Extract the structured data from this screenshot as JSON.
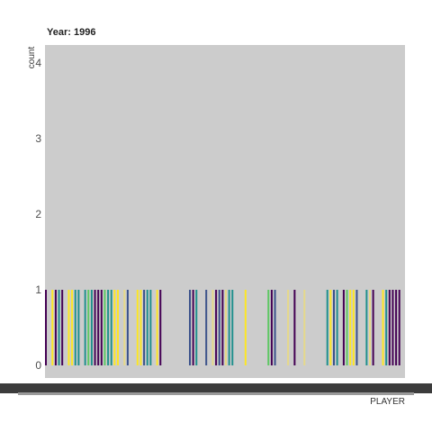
{
  "chart_data": {
    "type": "bar",
    "title": "Year: 1996",
    "xlabel": "PLAYER",
    "ylabel": "count",
    "ylim": [
      0,
      4.2
    ],
    "yticks": [
      0,
      1,
      2,
      3,
      4
    ],
    "grid": false,
    "panel_background": "#cccccc",
    "palette": [
      "#440154",
      "#3b528b",
      "#21908d",
      "#5dc863",
      "#fde725",
      "#e6d98a"
    ],
    "categories_note": "x-axis tick labels (player names) are rotated, overlapping and illegible",
    "bar_count": 110,
    "value": 1
  }
}
